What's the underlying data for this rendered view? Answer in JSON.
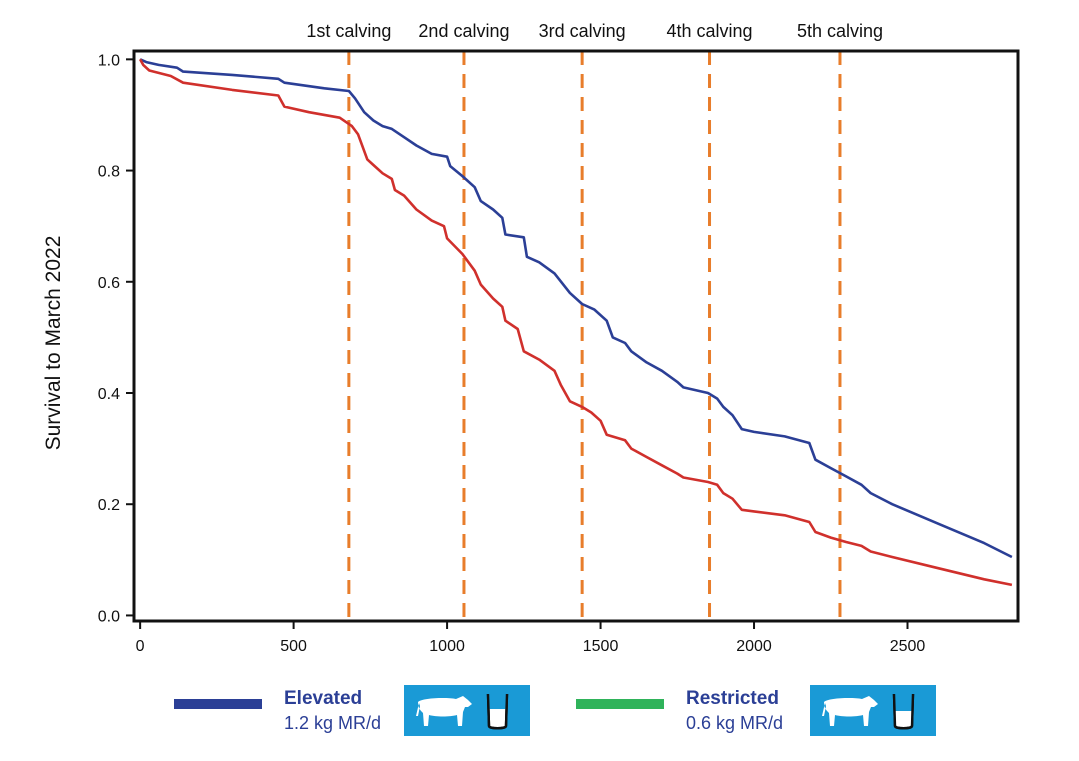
{
  "chart_data": {
    "type": "line",
    "ylabel": "Survival to March 2022",
    "xlabel": "",
    "xlim": [
      -20,
      2860
    ],
    "ylim": [
      -0.01,
      1.015
    ],
    "x_ticks": [
      0,
      500,
      1000,
      1500,
      2000,
      2500
    ],
    "y_ticks": [
      0.0,
      0.2,
      0.4,
      0.6,
      0.8,
      1.0
    ],
    "x_tick_labels": [
      "0",
      "500",
      "1000",
      "1500",
      "2000",
      "2500"
    ],
    "y_tick_labels": [
      "0.0",
      "0.2",
      "0.4",
      "0.6",
      "0.8",
      "1.0"
    ],
    "calving_markers": [
      {
        "label": "1st calving",
        "x": 680
      },
      {
        "label": "2nd calving",
        "x": 1055
      },
      {
        "label": "3rd calving",
        "x": 1440
      },
      {
        "label": "4th calving",
        "x": 1855
      },
      {
        "label": "5th calving",
        "x": 2280
      }
    ],
    "colors": {
      "elevated": "#2b3f96",
      "restricted": "#d0302c",
      "marker": "#e87d2b",
      "legend_restricted_swatch": "#2fb35a",
      "badge": "#1a9ad6"
    },
    "series": [
      {
        "name": "Elevated",
        "subtitle": "1.2 kg MR/d",
        "points": [
          [
            0,
            1.0
          ],
          [
            20,
            0.995
          ],
          [
            60,
            0.99
          ],
          [
            120,
            0.985
          ],
          [
            140,
            0.978
          ],
          [
            300,
            0.972
          ],
          [
            450,
            0.965
          ],
          [
            470,
            0.958
          ],
          [
            600,
            0.948
          ],
          [
            680,
            0.943
          ],
          [
            700,
            0.93
          ],
          [
            730,
            0.905
          ],
          [
            760,
            0.89
          ],
          [
            790,
            0.88
          ],
          [
            820,
            0.875
          ],
          [
            860,
            0.86
          ],
          [
            900,
            0.845
          ],
          [
            950,
            0.83
          ],
          [
            1000,
            0.825
          ],
          [
            1010,
            0.808
          ],
          [
            1050,
            0.79
          ],
          [
            1090,
            0.77
          ],
          [
            1110,
            0.745
          ],
          [
            1150,
            0.73
          ],
          [
            1180,
            0.715
          ],
          [
            1190,
            0.685
          ],
          [
            1250,
            0.68
          ],
          [
            1260,
            0.645
          ],
          [
            1300,
            0.635
          ],
          [
            1350,
            0.615
          ],
          [
            1400,
            0.58
          ],
          [
            1440,
            0.56
          ],
          [
            1480,
            0.55
          ],
          [
            1520,
            0.53
          ],
          [
            1540,
            0.5
          ],
          [
            1580,
            0.49
          ],
          [
            1600,
            0.475
          ],
          [
            1650,
            0.455
          ],
          [
            1700,
            0.44
          ],
          [
            1750,
            0.42
          ],
          [
            1770,
            0.41
          ],
          [
            1850,
            0.4
          ],
          [
            1880,
            0.39
          ],
          [
            1900,
            0.375
          ],
          [
            1930,
            0.36
          ],
          [
            1960,
            0.335
          ],
          [
            2000,
            0.33
          ],
          [
            2100,
            0.322
          ],
          [
            2180,
            0.31
          ],
          [
            2200,
            0.28
          ],
          [
            2250,
            0.265
          ],
          [
            2300,
            0.25
          ],
          [
            2350,
            0.235
          ],
          [
            2380,
            0.22
          ],
          [
            2450,
            0.2
          ],
          [
            2600,
            0.165
          ],
          [
            2750,
            0.13
          ],
          [
            2840,
            0.105
          ]
        ]
      },
      {
        "name": "Restricted",
        "subtitle": "0.6 kg MR/d",
        "points": [
          [
            0,
            1.0
          ],
          [
            10,
            0.99
          ],
          [
            30,
            0.98
          ],
          [
            100,
            0.97
          ],
          [
            140,
            0.958
          ],
          [
            300,
            0.945
          ],
          [
            450,
            0.935
          ],
          [
            470,
            0.915
          ],
          [
            550,
            0.905
          ],
          [
            650,
            0.895
          ],
          [
            690,
            0.88
          ],
          [
            710,
            0.865
          ],
          [
            740,
            0.82
          ],
          [
            760,
            0.81
          ],
          [
            790,
            0.795
          ],
          [
            820,
            0.785
          ],
          [
            830,
            0.765
          ],
          [
            860,
            0.755
          ],
          [
            900,
            0.73
          ],
          [
            950,
            0.71
          ],
          [
            990,
            0.7
          ],
          [
            1000,
            0.678
          ],
          [
            1050,
            0.65
          ],
          [
            1090,
            0.62
          ],
          [
            1110,
            0.595
          ],
          [
            1150,
            0.57
          ],
          [
            1180,
            0.555
          ],
          [
            1190,
            0.53
          ],
          [
            1230,
            0.515
          ],
          [
            1250,
            0.475
          ],
          [
            1300,
            0.46
          ],
          [
            1350,
            0.44
          ],
          [
            1370,
            0.415
          ],
          [
            1400,
            0.385
          ],
          [
            1440,
            0.375
          ],
          [
            1470,
            0.365
          ],
          [
            1500,
            0.35
          ],
          [
            1520,
            0.325
          ],
          [
            1580,
            0.315
          ],
          [
            1600,
            0.3
          ],
          [
            1650,
            0.285
          ],
          [
            1700,
            0.27
          ],
          [
            1750,
            0.255
          ],
          [
            1770,
            0.248
          ],
          [
            1850,
            0.24
          ],
          [
            1880,
            0.235
          ],
          [
            1900,
            0.22
          ],
          [
            1930,
            0.21
          ],
          [
            1960,
            0.19
          ],
          [
            2000,
            0.187
          ],
          [
            2100,
            0.18
          ],
          [
            2180,
            0.168
          ],
          [
            2200,
            0.15
          ],
          [
            2250,
            0.14
          ],
          [
            2300,
            0.132
          ],
          [
            2350,
            0.125
          ],
          [
            2380,
            0.115
          ],
          [
            2450,
            0.105
          ],
          [
            2600,
            0.085
          ],
          [
            2750,
            0.065
          ],
          [
            2840,
            0.055
          ]
        ]
      }
    ]
  },
  "legend": {
    "elevated": {
      "title": "Elevated",
      "subtitle": "1.2 kg MR/d",
      "icons": [
        "cow-icon",
        "milk-bucket-icon"
      ]
    },
    "restricted": {
      "title": "Restricted",
      "subtitle": "0.6 kg MR/d",
      "icons": [
        "cow-icon",
        "milk-bucket-icon"
      ]
    }
  }
}
